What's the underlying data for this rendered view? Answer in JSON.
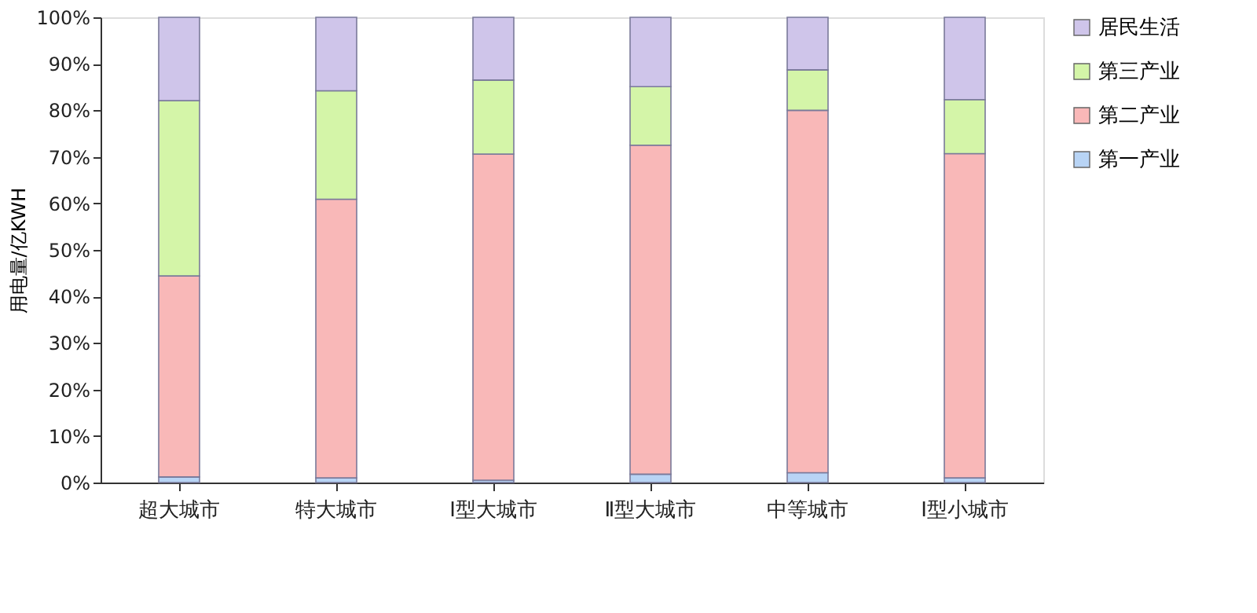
{
  "chart_data": {
    "type": "bar",
    "stacked": true,
    "ylabel": "用电量/亿KWH",
    "categories": [
      "超大城市",
      "特大城市",
      "Ⅰ型大城市",
      "Ⅱ型大城市",
      "中等城市",
      "Ⅰ型小城市"
    ],
    "series": [
      {
        "name": "第一产业",
        "color": "#b8d4f5",
        "values": [
          1.2,
          1,
          0.5,
          1.8,
          2.1,
          1
        ]
      },
      {
        "name": "第二产业",
        "color": "#f9b8b8",
        "values": [
          43.2,
          59.9,
          70.1,
          70.7,
          77.9,
          69.7
        ]
      },
      {
        "name": "第三产业",
        "color": "#d4f5a8",
        "values": [
          37.7,
          23.3,
          15.9,
          12.6,
          8.7,
          11.6
        ]
      },
      {
        "name": "居民生活",
        "color": "#cfc5ea",
        "values": [
          17.9,
          15.8,
          13.5,
          14.9,
          11.3,
          17.7
        ]
      }
    ],
    "ylim": [
      0,
      100
    ],
    "yticks": [
      {
        "value": 0,
        "label": "0%"
      },
      {
        "value": 10,
        "label": "10%"
      },
      {
        "value": 20,
        "label": "20%"
      },
      {
        "value": 30,
        "label": "30%"
      },
      {
        "value": 40,
        "label": "40%"
      },
      {
        "value": 50,
        "label": "50%"
      },
      {
        "value": 60,
        "label": "60%"
      },
      {
        "value": 70,
        "label": "70%"
      },
      {
        "value": 80,
        "label": "80%"
      },
      {
        "value": 90,
        "label": "90%"
      },
      {
        "value": 100,
        "label": "100%"
      }
    ],
    "grid": false,
    "legend": "right"
  }
}
